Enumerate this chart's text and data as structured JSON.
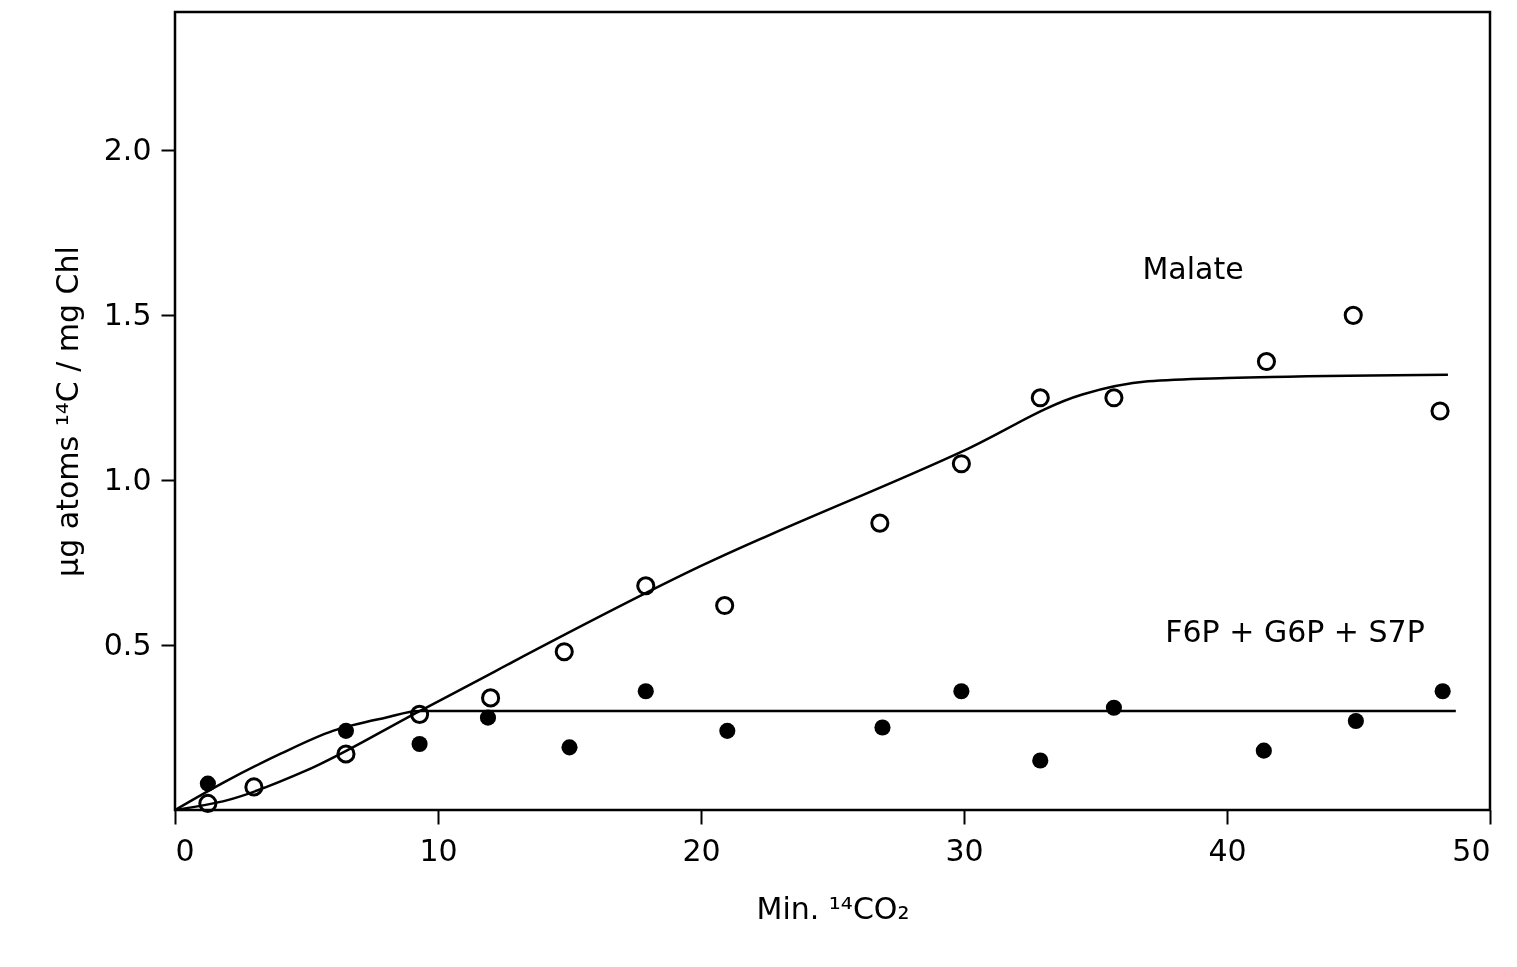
{
  "chart_data": {
    "type": "scatter",
    "xlabel": "Min. ¹⁴CO₂",
    "ylabel": "μg atoms ¹⁴C / mg Chl",
    "xlim": [
      0,
      50
    ],
    "xticks": [
      0,
      10,
      20,
      30,
      40,
      50
    ],
    "ylim": [
      0,
      2.42
    ],
    "yticks": [
      0.5,
      {
        "value": 1,
        "label": "1.0"
      },
      1.5,
      {
        "value": 2,
        "label": "2.0"
      }
    ],
    "grid": false,
    "series": [
      {
        "name": "Malate",
        "color": "#000000",
        "marker": "circle",
        "x": [
          1.25,
          3.0,
          6.5,
          9.3,
          12,
          14.8,
          17.9,
          20.9,
          26.8,
          29.9,
          32.9,
          35.7,
          41.5,
          44.8,
          48.1
        ],
        "values": [
          0.02,
          0.07,
          0.17,
          0.29,
          0.34,
          0.48,
          0.68,
          0.62,
          0.87,
          1.05,
          1.25,
          1.25,
          1.36,
          1.5,
          1.21
        ]
      },
      {
        "name": "F6P + G6P + S7P",
        "color": "#000000",
        "marker": "circle",
        "x": [
          1.25,
          6.5,
          9.3,
          11.9,
          15,
          17.9,
          21,
          26.9,
          29.9,
          32.9,
          35.7,
          41.4,
          44.9,
          48.2
        ],
        "values": [
          0.08,
          0.24,
          0.2,
          0.28,
          0.19,
          0.36,
          0.24,
          0.25,
          0.36,
          0.15,
          0.31,
          0.18,
          0.27,
          0.36
        ]
      },
      {
        "type": "line",
        "color": "#000000",
        "line_style": "solid",
        "x": [
          0,
          2,
          5,
          9.3,
          20,
          30,
          34.5,
          37,
          40,
          48.4
        ],
        "values": [
          0,
          0.03,
          0.12,
          0.3,
          0.74,
          1.09,
          1.26,
          1.3,
          1.31,
          1.32
        ]
      },
      {
        "type": "line",
        "color": "#000000",
        "line_style": "solid",
        "x": [
          0,
          2,
          4,
          6,
          8,
          9.3,
          48.7
        ],
        "values": [
          0,
          0.09,
          0.17,
          0.24,
          0.28,
          0.3,
          0.3
        ]
      }
    ]
  }
}
